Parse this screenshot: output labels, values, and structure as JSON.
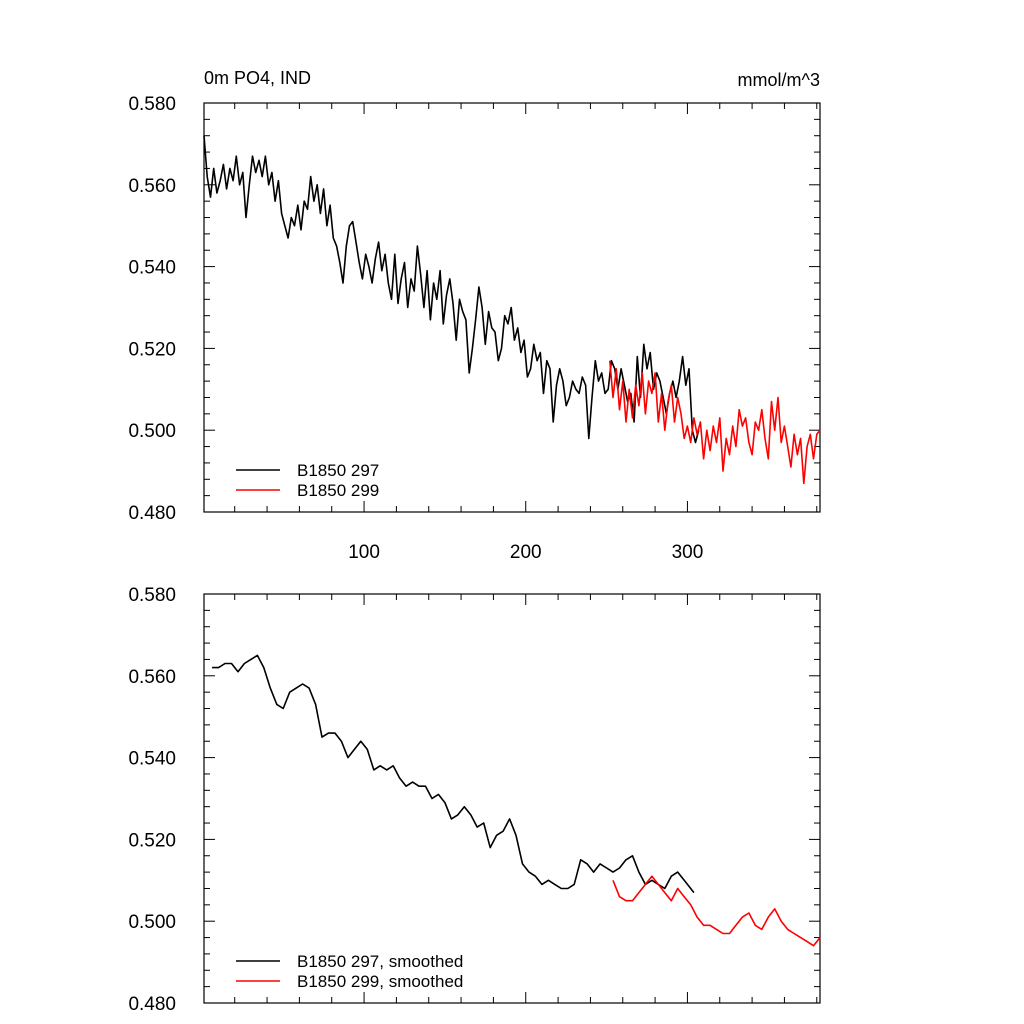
{
  "chart_data": [
    {
      "type": "line",
      "title_left": "0m PO4, IND",
      "title_right": "mmol/m^3",
      "xlim": [
        1,
        382
      ],
      "ylim": [
        0.48,
        0.58
      ],
      "x_ticks": [
        100,
        200,
        300
      ],
      "x_tick_labels": [
        "100",
        "200",
        "300"
      ],
      "y_ticks": [
        0.48,
        0.5,
        0.52,
        0.54,
        0.56,
        0.58
      ],
      "y_tick_labels": [
        "0.480",
        "0.500",
        "0.520",
        "0.540",
        "0.560",
        "0.580"
      ],
      "grid": false,
      "legend_position": "bottom-left",
      "series": [
        {
          "name": "B1850 297",
          "color": "#000000",
          "x": [
            1,
            3,
            5,
            7,
            9,
            11,
            13,
            15,
            17,
            19,
            21,
            23,
            25,
            27,
            29,
            31,
            33,
            35,
            37,
            39,
            41,
            43,
            45,
            47,
            49,
            51,
            53,
            55,
            57,
            59,
            61,
            63,
            65,
            67,
            69,
            71,
            73,
            75,
            77,
            79,
            81,
            83,
            85,
            87,
            89,
            91,
            93,
            95,
            97,
            99,
            101,
            103,
            105,
            107,
            109,
            111,
            113,
            115,
            117,
            119,
            121,
            123,
            125,
            127,
            129,
            131,
            133,
            135,
            137,
            139,
            141,
            143,
            145,
            147,
            149,
            151,
            153,
            155,
            157,
            159,
            161,
            163,
            165,
            167,
            169,
            171,
            173,
            175,
            177,
            179,
            181,
            183,
            185,
            187,
            189,
            191,
            193,
            195,
            197,
            199,
            201,
            203,
            205,
            207,
            209,
            211,
            213,
            215,
            217,
            219,
            221,
            223,
            225,
            227,
            229,
            231,
            233,
            235,
            237,
            239,
            241,
            243,
            245,
            247,
            249,
            251,
            253,
            255,
            257,
            259,
            261,
            263,
            265,
            267,
            269,
            271,
            273,
            275,
            277,
            279,
            281,
            283,
            285,
            287,
            289,
            291,
            293,
            295,
            297,
            299,
            301,
            303,
            305,
            307
          ],
          "y": [
            0.572,
            0.562,
            0.557,
            0.564,
            0.558,
            0.561,
            0.565,
            0.559,
            0.564,
            0.561,
            0.567,
            0.56,
            0.563,
            0.552,
            0.56,
            0.567,
            0.563,
            0.566,
            0.562,
            0.567,
            0.56,
            0.563,
            0.556,
            0.561,
            0.553,
            0.55,
            0.547,
            0.552,
            0.55,
            0.555,
            0.549,
            0.556,
            0.554,
            0.562,
            0.556,
            0.56,
            0.553,
            0.559,
            0.55,
            0.555,
            0.547,
            0.545,
            0.541,
            0.536,
            0.545,
            0.55,
            0.551,
            0.546,
            0.541,
            0.537,
            0.543,
            0.54,
            0.536,
            0.542,
            0.546,
            0.539,
            0.543,
            0.536,
            0.532,
            0.543,
            0.531,
            0.537,
            0.541,
            0.53,
            0.537,
            0.534,
            0.545,
            0.538,
            0.53,
            0.539,
            0.527,
            0.536,
            0.532,
            0.539,
            0.526,
            0.533,
            0.537,
            0.531,
            0.522,
            0.532,
            0.529,
            0.527,
            0.514,
            0.52,
            0.527,
            0.535,
            0.53,
            0.521,
            0.529,
            0.525,
            0.524,
            0.517,
            0.52,
            0.528,
            0.526,
            0.53,
            0.522,
            0.525,
            0.519,
            0.522,
            0.513,
            0.515,
            0.521,
            0.517,
            0.519,
            0.509,
            0.517,
            0.515,
            0.502,
            0.511,
            0.515,
            0.512,
            0.506,
            0.508,
            0.512,
            0.51,
            0.509,
            0.513,
            0.511,
            0.498,
            0.508,
            0.517,
            0.512,
            0.514,
            0.509,
            0.51,
            0.517,
            0.515,
            0.51,
            0.515,
            0.511,
            0.507,
            0.509,
            0.502,
            0.518,
            0.508,
            0.521,
            0.515,
            0.519,
            0.51,
            0.514,
            0.512,
            0.508,
            0.504,
            0.509,
            0.512,
            0.508,
            0.512,
            0.518,
            0.511,
            0.515,
            0.5,
            0.497,
            0.5
          ]
        },
        {
          "name": "B1850 299",
          "color": "#ff0000",
          "x": [
            252,
            254,
            256,
            258,
            260,
            262,
            264,
            266,
            268,
            270,
            272,
            274,
            276,
            278,
            280,
            282,
            284,
            286,
            288,
            290,
            292,
            294,
            296,
            298,
            300,
            302,
            304,
            306,
            308,
            310,
            312,
            314,
            316,
            318,
            320,
            322,
            324,
            326,
            328,
            330,
            332,
            334,
            336,
            338,
            340,
            342,
            344,
            346,
            348,
            350,
            352,
            354,
            356,
            358,
            360,
            362,
            364,
            366,
            368,
            370,
            372,
            374,
            376,
            378,
            380,
            382
          ],
          "y": [
            0.517,
            0.508,
            0.515,
            0.505,
            0.512,
            0.502,
            0.51,
            0.503,
            0.511,
            0.506,
            0.514,
            0.504,
            0.512,
            0.509,
            0.514,
            0.502,
            0.509,
            0.5,
            0.507,
            0.511,
            0.502,
            0.508,
            0.504,
            0.498,
            0.501,
            0.497,
            0.503,
            0.499,
            0.502,
            0.493,
            0.5,
            0.495,
            0.501,
            0.497,
            0.503,
            0.49,
            0.498,
            0.494,
            0.501,
            0.496,
            0.505,
            0.501,
            0.503,
            0.497,
            0.494,
            0.502,
            0.5,
            0.505,
            0.498,
            0.493,
            0.507,
            0.5,
            0.508,
            0.497,
            0.501,
            0.496,
            0.491,
            0.499,
            0.494,
            0.498,
            0.487,
            0.496,
            0.499,
            0.493,
            0.499,
            0.5
          ]
        }
      ]
    },
    {
      "type": "line",
      "xlim": [
        1,
        382
      ],
      "ylim": [
        0.48,
        0.58
      ],
      "x_ticks": [
        100,
        200,
        300
      ],
      "y_ticks": [
        0.48,
        0.5,
        0.52,
        0.54,
        0.56,
        0.58
      ],
      "y_tick_labels": [
        "0.480",
        "0.500",
        "0.520",
        "0.540",
        "0.560",
        "0.580"
      ],
      "grid": false,
      "legend_position": "bottom-left",
      "series": [
        {
          "name": "B1850 297, smoothed",
          "color": "#000000",
          "x": [
            6,
            10,
            14,
            18,
            22,
            26,
            30,
            34,
            38,
            42,
            46,
            50,
            54,
            58,
            62,
            66,
            70,
            74,
            78,
            82,
            86,
            90,
            94,
            98,
            102,
            106,
            110,
            114,
            118,
            122,
            126,
            130,
            134,
            138,
            142,
            146,
            150,
            154,
            158,
            162,
            166,
            170,
            174,
            178,
            182,
            186,
            190,
            194,
            198,
            202,
            206,
            210,
            214,
            218,
            222,
            226,
            230,
            234,
            238,
            242,
            246,
            250,
            254,
            258,
            262,
            266,
            270,
            274,
            278,
            282,
            286,
            290,
            294,
            298,
            302,
            304
          ],
          "y": [
            0.562,
            0.562,
            0.563,
            0.563,
            0.561,
            0.563,
            0.564,
            0.565,
            0.562,
            0.557,
            0.553,
            0.552,
            0.556,
            0.557,
            0.558,
            0.557,
            0.553,
            0.545,
            0.546,
            0.546,
            0.544,
            0.54,
            0.542,
            0.544,
            0.542,
            0.537,
            0.538,
            0.537,
            0.538,
            0.535,
            0.533,
            0.534,
            0.533,
            0.533,
            0.53,
            0.531,
            0.529,
            0.525,
            0.526,
            0.528,
            0.526,
            0.523,
            0.524,
            0.518,
            0.521,
            0.522,
            0.525,
            0.521,
            0.514,
            0.512,
            0.511,
            0.509,
            0.51,
            0.509,
            0.508,
            0.508,
            0.509,
            0.515,
            0.514,
            0.512,
            0.514,
            0.513,
            0.512,
            0.513,
            0.515,
            0.516,
            0.512,
            0.509,
            0.51,
            0.509,
            0.508,
            0.511,
            0.512,
            0.51,
            0.508,
            0.507
          ]
        },
        {
          "name": "B1850 299, smoothed",
          "color": "#ff0000",
          "x": [
            254,
            258,
            262,
            266,
            270,
            274,
            278,
            282,
            286,
            290,
            294,
            298,
            302,
            306,
            310,
            314,
            318,
            322,
            326,
            330,
            334,
            338,
            342,
            346,
            350,
            354,
            358,
            362,
            366,
            370,
            374,
            378,
            382
          ],
          "y": [
            0.51,
            0.506,
            0.505,
            0.505,
            0.507,
            0.509,
            0.511,
            0.509,
            0.507,
            0.505,
            0.508,
            0.506,
            0.504,
            0.501,
            0.499,
            0.499,
            0.498,
            0.497,
            0.497,
            0.499,
            0.501,
            0.502,
            0.499,
            0.498,
            0.501,
            0.503,
            0.5,
            0.498,
            0.497,
            0.496,
            0.495,
            0.494,
            0.496
          ]
        }
      ]
    }
  ]
}
